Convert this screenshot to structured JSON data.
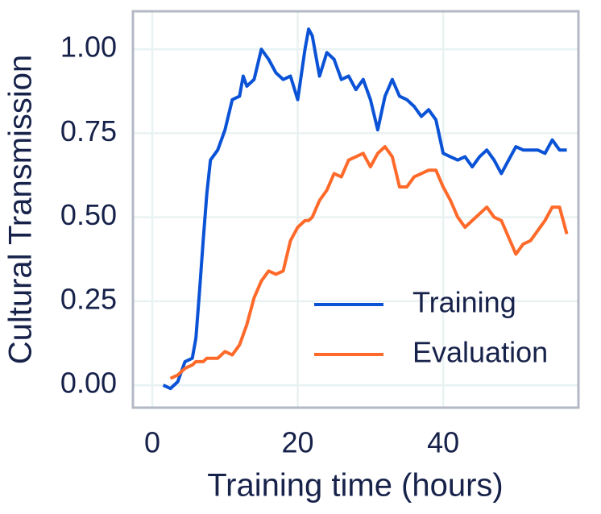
{
  "chart_data": {
    "type": "line",
    "xlabel": "Training time (hours)",
    "ylabel": "Cultural Transmission",
    "x": [
      1.5,
      2.5,
      3.5,
      4.5,
      5.5,
      6,
      6.5,
      7,
      7.5,
      8,
      9,
      10,
      11,
      12,
      12.5,
      13,
      14,
      15,
      16,
      17,
      18,
      19,
      20,
      21,
      21.5,
      22,
      23,
      24,
      25,
      26,
      27,
      28,
      29,
      30,
      31,
      32,
      33,
      34,
      35,
      36,
      37,
      38,
      39,
      40,
      41,
      42,
      43,
      44,
      45,
      46,
      47,
      48,
      49,
      50,
      51,
      52,
      53,
      54,
      55,
      56,
      57
    ],
    "series": [
      {
        "name": "Training",
        "color": "#0a52d6",
        "values": [
          0.0,
          -0.01,
          0.01,
          0.07,
          0.08,
          0.14,
          0.28,
          0.43,
          0.57,
          0.67,
          0.7,
          0.76,
          0.85,
          0.86,
          0.92,
          0.89,
          0.91,
          1.0,
          0.97,
          0.93,
          0.91,
          0.92,
          0.85,
          1.0,
          1.06,
          1.04,
          0.92,
          0.99,
          0.97,
          0.91,
          0.92,
          0.88,
          0.91,
          0.85,
          0.76,
          0.86,
          0.91,
          0.86,
          0.85,
          0.83,
          0.8,
          0.82,
          0.79,
          0.69,
          0.68,
          0.67,
          0.68,
          0.65,
          0.68,
          0.7,
          0.67,
          0.63,
          0.67,
          0.71,
          0.7,
          0.7,
          0.7,
          0.69,
          0.73,
          0.7,
          0.7
        ]
      },
      {
        "name": "Evaluation",
        "color": "#ff6a2a",
        "values": [
          null,
          0.02,
          0.03,
          0.05,
          0.06,
          0.07,
          0.07,
          0.07,
          0.08,
          0.08,
          0.08,
          0.1,
          0.09,
          0.12,
          0.15,
          0.18,
          0.26,
          0.31,
          0.34,
          0.33,
          0.34,
          0.43,
          0.47,
          0.49,
          0.49,
          0.5,
          0.55,
          0.58,
          0.63,
          0.62,
          0.67,
          0.68,
          0.69,
          0.65,
          0.69,
          0.71,
          0.68,
          0.59,
          0.59,
          0.62,
          0.63,
          0.64,
          0.64,
          0.59,
          0.55,
          0.5,
          0.47,
          0.49,
          0.51,
          0.53,
          0.5,
          0.49,
          0.44,
          0.39,
          0.42,
          0.43,
          0.46,
          0.49,
          0.53,
          0.53,
          0.45
        ]
      }
    ],
    "xlim": [
      -2.66,
      58.6
    ],
    "xticks": [
      0,
      20,
      40
    ],
    "ylim": [
      -0.067,
      1.113
    ],
    "yticks": [
      {
        "value": 0,
        "label": "0.00"
      },
      {
        "value": 0.25,
        "label": "0.25"
      },
      {
        "value": 0.5,
        "label": "0.50"
      },
      {
        "value": 0.75,
        "label": "0.75"
      },
      {
        "value": 1,
        "label": "1.00"
      }
    ],
    "grid": true,
    "legend": "lower right"
  }
}
